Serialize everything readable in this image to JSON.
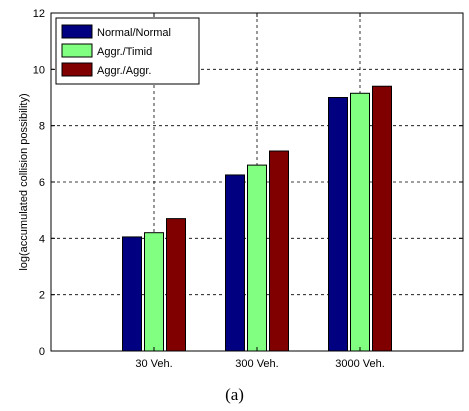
{
  "caption": "(a)",
  "chart_data": {
    "type": "bar",
    "categories": [
      "30 Veh.",
      "300 Veh.",
      "3000 Veh."
    ],
    "series": [
      {
        "name": "Normal/Normal",
        "color": "#000080",
        "values": [
          4.05,
          6.25,
          9.0
        ]
      },
      {
        "name": "Aggr./Timid",
        "color": "#80ff80",
        "values": [
          4.2,
          6.6,
          9.15
        ]
      },
      {
        "name": "Aggr./Aggr.",
        "color": "#800000",
        "values": [
          4.7,
          7.1,
          9.4
        ]
      }
    ],
    "ylabel": "log(accumulated collision possibility)",
    "ylim": [
      0,
      12
    ],
    "yticks": [
      0,
      2,
      4,
      6,
      8,
      10,
      12
    ],
    "grid": true,
    "legend_position": "top-left"
  }
}
